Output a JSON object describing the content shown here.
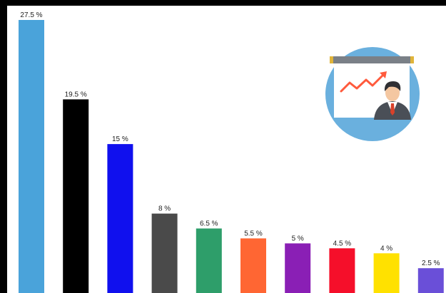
{
  "chart_data": {
    "type": "bar",
    "title": "",
    "xlabel": "",
    "ylabel": "",
    "ylim": [
      0,
      27.5
    ],
    "grid": false,
    "legend": "none",
    "values": [
      27.5,
      19.5,
      15,
      8,
      6.5,
      5.5,
      5,
      4.5,
      4,
      2.5
    ],
    "data_labels": [
      "27.5 %",
      "19.5 %",
      "15 %",
      "8 %",
      "6.5 %",
      "5.5 %",
      "5 %",
      "4.5 %",
      "4 %",
      "2.5 %"
    ],
    "colors": [
      "#4aa3da",
      "#000000",
      "#1010ee",
      "#4a4a4a",
      "#2e9e6a",
      "#ff6633",
      "#8a1fb5",
      "#f50f2a",
      "#ffe100",
      "#6a4fd8"
    ]
  },
  "illustration": {
    "icon": "presentation-board-businessman-icon",
    "circle_color": "#6ab0de",
    "board_color": "#ffffff",
    "arrow_color": "#ff5a3c"
  }
}
